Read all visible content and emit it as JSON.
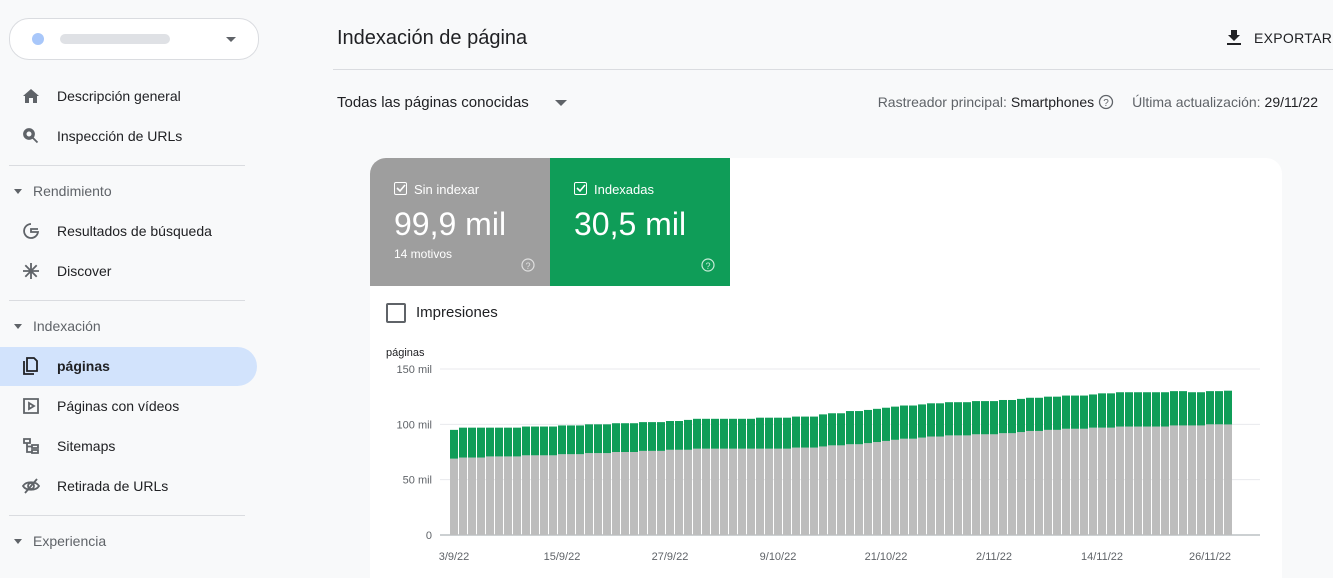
{
  "sidebar": {
    "items": [
      {
        "label": "Descripción general"
      },
      {
        "label": "Inspección de URLs"
      },
      {
        "section": "Rendimiento"
      },
      {
        "label": "Resultados de búsqueda"
      },
      {
        "label": "Discover"
      },
      {
        "section": "Indexación"
      },
      {
        "label": "páginas"
      },
      {
        "label": "Páginas con vídeos"
      },
      {
        "label": "Sitemaps"
      },
      {
        "label": "Retirada de URLs"
      },
      {
        "section": "Experiencia"
      }
    ]
  },
  "header": {
    "title": "Indexación de página",
    "export": "EXPORTAR"
  },
  "filter": {
    "scope": "Todas las páginas conocidas",
    "crawler_label": "Rastreador principal:",
    "crawler": "Smartphones",
    "updated_label": "Última actualización:",
    "updated": "29/11/22"
  },
  "cards": [
    {
      "value_text": "99,9 mil",
      "note": "14 motivos"
    },
    {
      "value_text": "30,5 mil"
    }
  ],
  "impressions": "Impresiones",
  "chart_data": {
    "type": "stacked_bar",
    "y_label": "páginas",
    "categories": [
      "3/9/22",
      null,
      null,
      null,
      null,
      null,
      null,
      null,
      null,
      null,
      null,
      null,
      "15/9/22",
      null,
      null,
      null,
      null,
      null,
      null,
      null,
      null,
      null,
      null,
      null,
      "27/9/22",
      null,
      null,
      null,
      null,
      null,
      null,
      null,
      null,
      null,
      null,
      null,
      "9/10/22",
      null,
      null,
      null,
      null,
      null,
      null,
      null,
      null,
      null,
      null,
      null,
      "21/10/22",
      null,
      null,
      null,
      null,
      null,
      null,
      null,
      null,
      null,
      null,
      null,
      "2/11/22",
      null,
      null,
      null,
      null,
      null,
      null,
      null,
      null,
      null,
      null,
      null,
      "14/11/22",
      null,
      null,
      null,
      null,
      null,
      null,
      null,
      null,
      null,
      null,
      null,
      "26/11/22",
      null,
      null
    ],
    "series": [
      {
        "name": "Sin indexar",
        "color": "#bdbdbd",
        "values": [
          69000,
          70000,
          70000,
          70000,
          71000,
          71000,
          71000,
          71000,
          72000,
          72000,
          72000,
          72000,
          73000,
          73000,
          73000,
          74000,
          74000,
          74000,
          75000,
          75000,
          75000,
          76000,
          76000,
          76000,
          77000,
          77000,
          77000,
          78000,
          78000,
          78000,
          78000,
          78000,
          78000,
          78000,
          78000,
          78000,
          78000,
          78000,
          79000,
          79000,
          79000,
          80000,
          81000,
          81000,
          82000,
          82000,
          83000,
          84000,
          85000,
          86000,
          87000,
          87000,
          88000,
          89000,
          89000,
          90000,
          90000,
          90000,
          91000,
          91000,
          91000,
          92000,
          92000,
          93000,
          94000,
          94000,
          95000,
          95000,
          96000,
          96000,
          96000,
          97000,
          97000,
          97000,
          98000,
          98000,
          98000,
          98000,
          98000,
          98000,
          99000,
          99000,
          99000,
          99000,
          100000,
          100000,
          99900
        ]
      },
      {
        "name": "Indexadas",
        "color": "#0f9d58",
        "values": [
          26000,
          27000,
          27000,
          27000,
          26000,
          26000,
          26000,
          26000,
          26000,
          26000,
          26000,
          26000,
          26000,
          26000,
          26000,
          26000,
          26000,
          26000,
          26000,
          26000,
          26000,
          26000,
          26000,
          26000,
          26000,
          26000,
          27000,
          27000,
          27000,
          27000,
          27000,
          27000,
          27000,
          27000,
          28000,
          28000,
          28000,
          28000,
          28000,
          28000,
          28000,
          29000,
          29000,
          29000,
          30000,
          30000,
          30000,
          30000,
          30000,
          30000,
          30000,
          30000,
          30000,
          30000,
          30000,
          30000,
          30000,
          30000,
          30000,
          30000,
          30000,
          30000,
          30000,
          30000,
          30000,
          30000,
          30000,
          30000,
          30000,
          30000,
          30000,
          30000,
          31000,
          31000,
          31000,
          31000,
          31000,
          31000,
          31000,
          31000,
          31000,
          31000,
          30000,
          30000,
          30000,
          30000,
          30500
        ]
      }
    ],
    "ylim": [
      0,
      150000
    ],
    "yticks": [
      0,
      {
        "value": 50000,
        "label": "50 mil"
      },
      {
        "value": 100000,
        "label": "100 mil"
      },
      {
        "value": 150000,
        "label": "150 mil"
      }
    ],
    "grid": true
  }
}
